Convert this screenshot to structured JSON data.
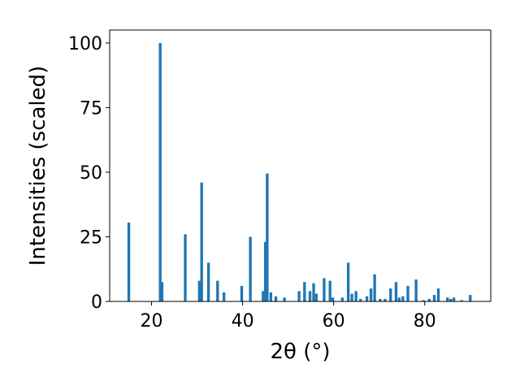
{
  "chart_data": {
    "type": "bar",
    "xlabel": "2θ (°)",
    "ylabel": "Intensities (scaled)",
    "xlim": [
      10.8,
      94.5
    ],
    "ylim": [
      0,
      105
    ],
    "x_ticks": [
      20,
      40,
      60,
      80
    ],
    "y_ticks": [
      0,
      25,
      50,
      75,
      100
    ],
    "bar_width": 0.6,
    "color": "#1f77b4",
    "grid": false,
    "x": [
      15.0,
      21.9,
      22.3,
      27.4,
      30.5,
      31.0,
      32.5,
      34.5,
      35.9,
      39.8,
      41.7,
      44.5,
      45.0,
      45.4,
      46.2,
      47.3,
      49.2,
      52.4,
      53.6,
      54.8,
      55.6,
      56.2,
      57.9,
      59.2,
      59.8,
      61.9,
      63.2,
      64.0,
      64.9,
      65.9,
      67.3,
      68.2,
      69.0,
      70.2,
      71.3,
      72.5,
      73.7,
      74.4,
      75.2,
      76.3,
      78.1,
      79.7,
      81.0,
      82.1,
      83.0,
      85.0,
      85.7,
      86.4,
      88.1,
      90.0
    ],
    "values": [
      30.5,
      100.0,
      7.5,
      26.0,
      8.0,
      46.0,
      15.0,
      8.0,
      3.5,
      6.0,
      25.0,
      4.0,
      23.0,
      49.5,
      3.5,
      2.0,
      1.5,
      4.0,
      7.5,
      4.0,
      7.0,
      3.0,
      9.0,
      8.0,
      1.5,
      1.5,
      15.0,
      3.0,
      4.0,
      1.0,
      2.0,
      5.0,
      10.5,
      1.0,
      1.0,
      5.0,
      7.5,
      1.5,
      2.0,
      6.0,
      8.5,
      0.5,
      1.0,
      2.5,
      5.0,
      1.5,
      1.0,
      1.5,
      0.5,
      2.5
    ]
  }
}
